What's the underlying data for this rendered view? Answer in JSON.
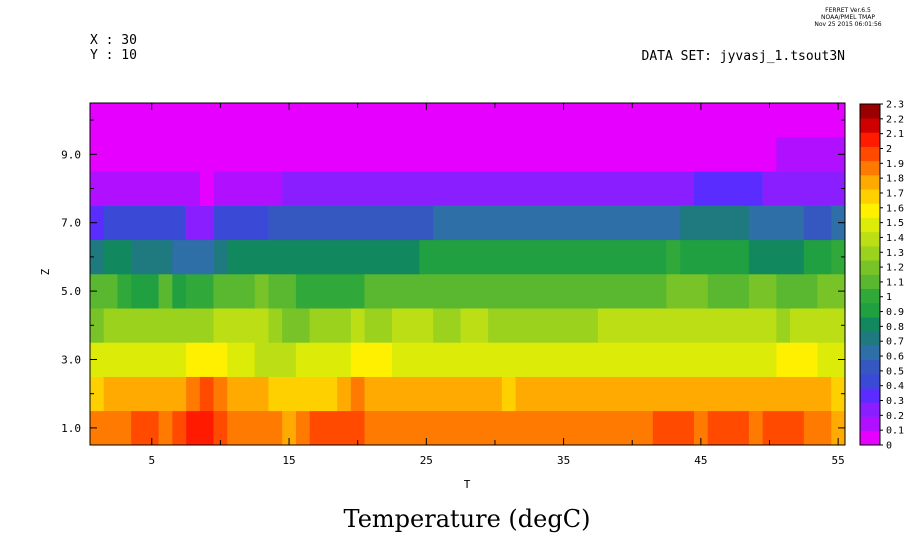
{
  "header": {
    "stamp": [
      "FERRET  Ver.6.5",
      "NOAA/PMEL TMAP",
      "Nov 25 2015 06:01:56"
    ],
    "x_info": "X : 30",
    "y_info": "Y : 10",
    "dataset": "DATA SET: jyvasj_1.tsout3N"
  },
  "chart_data": {
    "type": "heatmap",
    "title": "Temperature (degC)",
    "xlabel": "T",
    "ylabel": "Z",
    "xlim": [
      0.5,
      55.5
    ],
    "ylim": [
      0.5,
      10.5
    ],
    "x_ticks": [
      "5",
      "15",
      "25",
      "35",
      "45",
      "55"
    ],
    "y_ticks": [
      "1.0",
      "3.0",
      "5.0",
      "7.0",
      "9.0"
    ],
    "colorbar_levels": [
      "0",
      "0.1",
      "0.2",
      "0.3",
      "0.4",
      "0.5",
      "0.6",
      "0.7",
      "0.8",
      "0.9",
      "1",
      "1.1",
      "1.2",
      "1.3",
      "1.4",
      "1.5",
      "1.6",
      "1.7",
      "1.8",
      "1.9",
      "2",
      "2.1",
      "2.2",
      "2.3"
    ],
    "colorbar_colors": [
      "#e600ff",
      "#b010ff",
      "#8a1eff",
      "#5a2cff",
      "#3a4ad6",
      "#3558c0",
      "#2e6fa8",
      "#1f7a80",
      "#12885e",
      "#20a040",
      "#30a83a",
      "#5ab830",
      "#78c428",
      "#9ad21e",
      "#bcde14",
      "#dcec08",
      "#fff000",
      "#ffd000",
      "#ffaa00",
      "#ff7a00",
      "#ff4a00",
      "#ff1a00",
      "#d00000",
      "#9a0000"
    ],
    "rows": [
      {
        "z": 1,
        "runs": [
          [
            1,
            3,
            19
          ],
          [
            4,
            5,
            20
          ],
          [
            6,
            6,
            19
          ],
          [
            7,
            7,
            20
          ],
          [
            8,
            9,
            21
          ],
          [
            10,
            10,
            20
          ],
          [
            11,
            14,
            19
          ],
          [
            15,
            15,
            18
          ],
          [
            16,
            16,
            19
          ],
          [
            17,
            20,
            20
          ],
          [
            21,
            41,
            19
          ],
          [
            42,
            44,
            20
          ],
          [
            45,
            45,
            19
          ],
          [
            46,
            48,
            20
          ],
          [
            49,
            49,
            19
          ],
          [
            50,
            52,
            20
          ],
          [
            53,
            54,
            19
          ],
          [
            55,
            55,
            18
          ]
        ]
      },
      {
        "z": 2,
        "runs": [
          [
            1,
            1,
            17
          ],
          [
            2,
            7,
            18
          ],
          [
            8,
            8,
            19
          ],
          [
            9,
            9,
            20
          ],
          [
            10,
            10,
            19
          ],
          [
            11,
            13,
            18
          ],
          [
            14,
            18,
            17
          ],
          [
            19,
            19,
            18
          ],
          [
            20,
            20,
            19
          ],
          [
            21,
            30,
            18
          ],
          [
            31,
            31,
            17
          ],
          [
            32,
            54,
            18
          ],
          [
            55,
            55,
            17
          ]
        ]
      },
      {
        "z": 3,
        "runs": [
          [
            1,
            7,
            15
          ],
          [
            8,
            10,
            16
          ],
          [
            11,
            12,
            15
          ],
          [
            13,
            15,
            14
          ],
          [
            16,
            19,
            15
          ],
          [
            20,
            22,
            16
          ],
          [
            23,
            50,
            15
          ],
          [
            51,
            53,
            16
          ],
          [
            54,
            55,
            15
          ]
        ]
      },
      {
        "z": 4,
        "runs": [
          [
            1,
            1,
            12
          ],
          [
            2,
            4,
            13
          ],
          [
            5,
            9,
            13
          ],
          [
            10,
            13,
            14
          ],
          [
            14,
            14,
            13
          ],
          [
            15,
            16,
            12
          ],
          [
            17,
            19,
            13
          ],
          [
            20,
            20,
            14
          ],
          [
            21,
            22,
            13
          ],
          [
            23,
            25,
            14
          ],
          [
            26,
            27,
            13
          ],
          [
            28,
            29,
            14
          ],
          [
            30,
            37,
            13
          ],
          [
            38,
            50,
            14
          ],
          [
            51,
            51,
            13
          ],
          [
            52,
            55,
            14
          ]
        ]
      },
      {
        "z": 5,
        "runs": [
          [
            1,
            2,
            11
          ],
          [
            3,
            3,
            10
          ],
          [
            4,
            5,
            9
          ],
          [
            6,
            6,
            11
          ],
          [
            7,
            7,
            9
          ],
          [
            8,
            9,
            10
          ],
          [
            10,
            12,
            11
          ],
          [
            13,
            13,
            12
          ],
          [
            14,
            15,
            11
          ],
          [
            16,
            20,
            10
          ],
          [
            21,
            42,
            11
          ],
          [
            43,
            45,
            12
          ],
          [
            46,
            48,
            11
          ],
          [
            49,
            50,
            12
          ],
          [
            51,
            53,
            11
          ],
          [
            54,
            55,
            12
          ]
        ]
      },
      {
        "z": 6,
        "runs": [
          [
            1,
            1,
            7
          ],
          [
            2,
            3,
            8
          ],
          [
            4,
            6,
            7
          ],
          [
            7,
            9,
            6
          ],
          [
            10,
            10,
            7
          ],
          [
            11,
            24,
            8
          ],
          [
            25,
            42,
            9
          ],
          [
            43,
            43,
            10
          ],
          [
            44,
            48,
            9
          ],
          [
            49,
            52,
            8
          ],
          [
            53,
            54,
            9
          ],
          [
            55,
            55,
            10
          ]
        ]
      },
      {
        "z": 7,
        "runs": [
          [
            1,
            1,
            3
          ],
          [
            2,
            7,
            4
          ],
          [
            8,
            9,
            2
          ],
          [
            10,
            13,
            4
          ],
          [
            14,
            25,
            5
          ],
          [
            26,
            43,
            6
          ],
          [
            44,
            48,
            7
          ],
          [
            49,
            52,
            6
          ],
          [
            53,
            54,
            5
          ],
          [
            55,
            55,
            6
          ]
        ]
      },
      {
        "z": 8,
        "runs": [
          [
            1,
            8,
            1
          ],
          [
            9,
            9,
            0
          ],
          [
            10,
            14,
            1
          ],
          [
            15,
            44,
            2
          ],
          [
            45,
            49,
            3
          ],
          [
            50,
            55,
            2
          ]
        ]
      },
      {
        "z": 9,
        "runs": [
          [
            1,
            50,
            0
          ],
          [
            51,
            55,
            1
          ]
        ]
      },
      {
        "z": 10,
        "runs": [
          [
            1,
            55,
            0
          ]
        ]
      }
    ]
  }
}
